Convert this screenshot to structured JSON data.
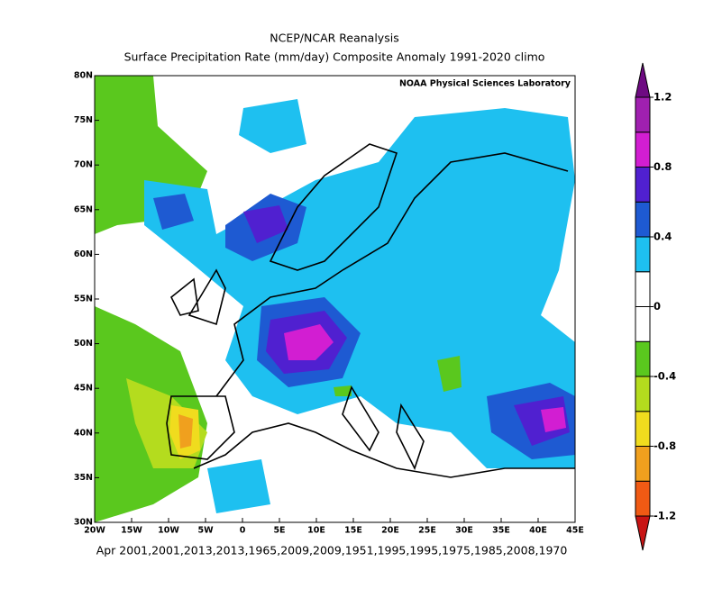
{
  "chart_data": {
    "type": "map",
    "title": "NCEP/NCAR Reanalysis",
    "subtitle": "Surface Precipitation Rate (mm/day) Composite Anomaly 1991-2020 climo",
    "credit": "NOAA Physical Sciences Laboratory",
    "caption": "Apr 2001,2001,2013,2013,1965,2009,2009,1951,1995,1995,1975,1985,2008,1970",
    "xlim": [
      -20,
      45
    ],
    "ylim": [
      30,
      80
    ],
    "xticks": [
      {
        "value": -20,
        "label": "20W"
      },
      {
        "value": -15,
        "label": "15W"
      },
      {
        "value": -10,
        "label": "10W"
      },
      {
        "value": -5,
        "label": "5W"
      },
      0,
      {
        "value": 5,
        "label": "5E"
      },
      {
        "value": 10,
        "label": "10E"
      },
      {
        "value": 15,
        "label": "15E"
      },
      {
        "value": 20,
        "label": "20E"
      },
      {
        "value": 25,
        "label": "25E"
      },
      {
        "value": 30,
        "label": "30E"
      },
      {
        "value": 35,
        "label": "35E"
      },
      {
        "value": 40,
        "label": "40E"
      },
      {
        "value": 45,
        "label": "45E"
      }
    ],
    "yticks": [
      {
        "value": 30,
        "label": "30N"
      },
      {
        "value": 35,
        "label": "35N"
      },
      {
        "value": 40,
        "label": "40N"
      },
      {
        "value": 45,
        "label": "45N"
      },
      {
        "value": 50,
        "label": "50N"
      },
      {
        "value": 55,
        "label": "55N"
      },
      {
        "value": 60,
        "label": "60N"
      },
      {
        "value": 65,
        "label": "65N"
      },
      {
        "value": 70,
        "label": "70N"
      },
      {
        "value": 75,
        "label": "75N"
      },
      {
        "value": 80,
        "label": "80N"
      }
    ],
    "colorbar": {
      "levels": [
        -1.2,
        -1.0,
        -0.8,
        -0.6,
        -0.4,
        -0.2,
        0,
        0.2,
        0.4,
        0.6,
        0.8,
        1.0,
        1.2
      ],
      "colors": [
        "#c81414",
        "#f05a14",
        "#f0a01e",
        "#f0dc1e",
        "#b4dc1e",
        "#5ac81e",
        "#ffffff",
        "#ffffff",
        "#1ec0f0",
        "#1e5ad2",
        "#5020d0",
        "#d21ed2",
        "#a020b0",
        "#6e0a82"
      ],
      "ticks": [
        -1.2,
        -0.8,
        -0.4,
        0,
        0.4,
        0.8,
        1.2
      ]
    }
  }
}
